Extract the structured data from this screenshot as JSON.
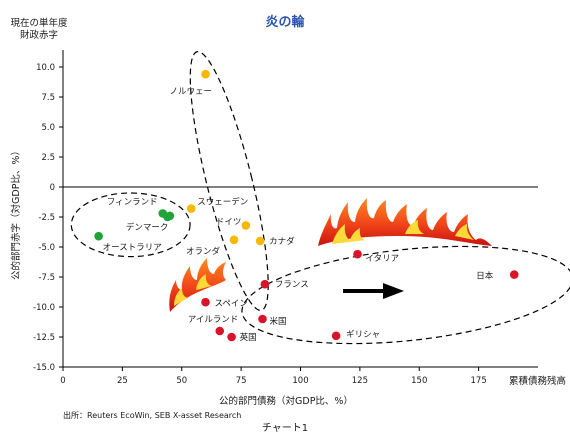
{
  "chart_data": {
    "type": "scatter",
    "title": "炎の輪",
    "ylabel_top": [
      "現在の単年度",
      "財政赤字"
    ],
    "ylabel_side": "公的部門赤字（対GDP比、%）",
    "xlabel": "公的部門債務（対GDP比、%）",
    "xlabel_right": "累積債務残高",
    "source": "出所：Reuters EcoWin, SEB X-asset Research",
    "caption": "チャート1",
    "xlim": [
      0,
      200
    ],
    "ylim": [
      -15,
      11
    ],
    "x_ticks": [
      0,
      25,
      50,
      75,
      100,
      125,
      150,
      175
    ],
    "y_ticks": [
      10.0,
      7.5,
      5.0,
      2.5,
      0,
      -2.5,
      -5.0,
      -7.5,
      -10.0,
      -12.5,
      -15.0
    ],
    "x_tick_labels": [
      "0",
      "25",
      "50",
      "75",
      "100",
      "125",
      "150",
      "175"
    ],
    "y_tick_labels": [
      "10.0",
      "7.5",
      "5.0",
      "2.5",
      "0",
      "-2.5",
      "-5.0",
      "-7.5",
      "-10.0",
      "-12.5",
      "-15.0"
    ],
    "grid": false,
    "colors": {
      "green": "#22a33a",
      "yellow": "#f6b800",
      "red": "#d8142a",
      "text": "#1a1a1a",
      "title": "#2a55b0"
    },
    "points": [
      {
        "label": "ノルウェー",
        "x": 60,
        "y": 9.4,
        "color": "yellow"
      },
      {
        "label": "フィンランド",
        "x": 42,
        "y": -2.2,
        "color": "green"
      },
      {
        "label": "",
        "x": 44,
        "y": -2.5,
        "color": "green"
      },
      {
        "label": "デンマーク",
        "x": 45,
        "y": -2.4,
        "color": "green"
      },
      {
        "label": "オーストラリア",
        "x": 15,
        "y": -4.1,
        "color": "green"
      },
      {
        "label": "スウェーデン",
        "x": 54,
        "y": -1.8,
        "color": "yellow"
      },
      {
        "label": "ドイツ",
        "x": 77,
        "y": -3.2,
        "color": "yellow"
      },
      {
        "label": "オランダ",
        "x": 72,
        "y": -4.4,
        "color": "yellow"
      },
      {
        "label": "カナダ",
        "x": 83,
        "y": -4.5,
        "color": "yellow"
      },
      {
        "label": "イタリア",
        "x": 124,
        "y": -5.6,
        "color": "red"
      },
      {
        "label": "日本",
        "x": 190,
        "y": -7.3,
        "color": "red"
      },
      {
        "label": "フランス",
        "x": 85,
        "y": -8.1,
        "color": "red"
      },
      {
        "label": "スペイン",
        "x": 60,
        "y": -9.6,
        "color": "red"
      },
      {
        "label": "アイルランド",
        "x": 66,
        "y": -12.0,
        "color": "red"
      },
      {
        "label": "英国",
        "x": 71,
        "y": -12.5,
        "color": "red"
      },
      {
        "label": "米国",
        "x": 84,
        "y": -11.0,
        "color": "red"
      },
      {
        "label": "ギリシャ",
        "x": 115,
        "y": -12.4,
        "color": "red"
      }
    ]
  }
}
